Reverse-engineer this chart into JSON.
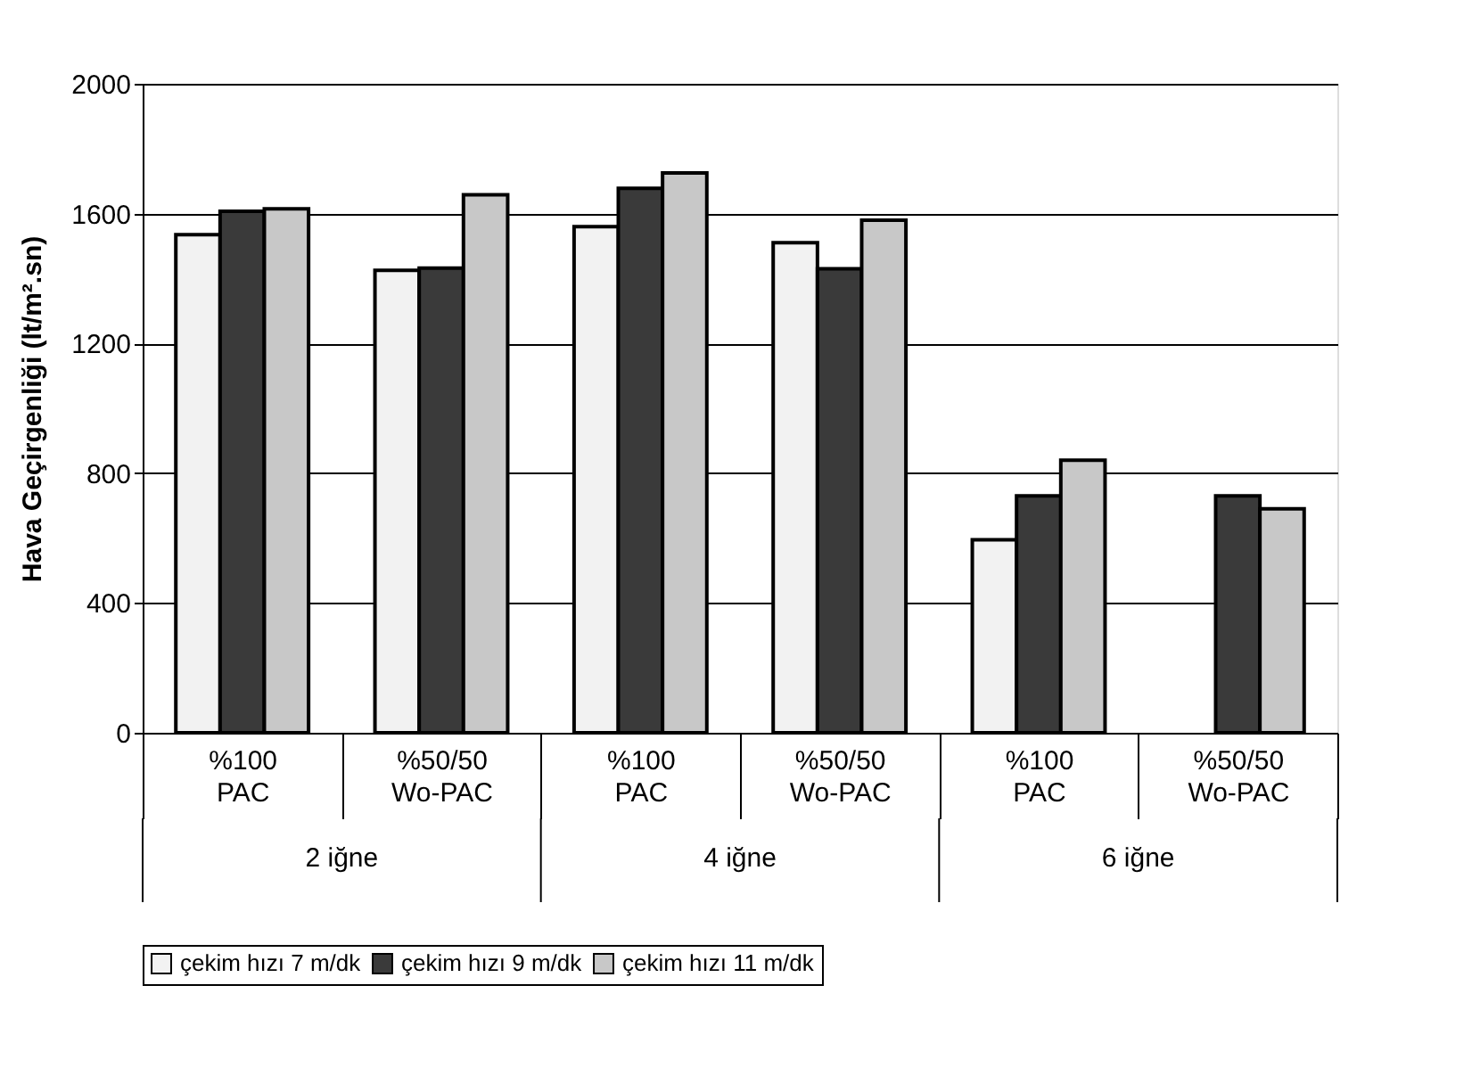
{
  "chart_data": {
    "type": "bar",
    "ylabel": "Hava Geçirgenliği (lt/m².sn)",
    "categories": [
      "%100 PAC",
      "%50/50 Wo-PAC",
      "%100 PAC",
      "%50/50 Wo-PAC",
      "%100 PAC",
      "%50/50 Wo-PAC"
    ],
    "annotations": [
      "2 iğne",
      "4 iğne",
      "6 iğne"
    ],
    "series": [
      {
        "name": "çekim hızı 7 m/dk",
        "color": "#f2f2f2",
        "values": [
          1535,
          1425,
          1560,
          1510,
          595,
          null
        ]
      },
      {
        "name": "çekim hızı 9 m/dk",
        "color": "#3a3a3a",
        "values": [
          1607,
          1432,
          1678,
          1430,
          730,
          730
        ]
      },
      {
        "name": "çekim hızı 11 m/dk",
        "color": "#c8c8c8",
        "values": [
          1615,
          1658,
          1725,
          1580,
          840,
          690
        ]
      }
    ],
    "ylim": [
      0,
      2000
    ],
    "yticks": [
      0,
      400,
      800,
      1200,
      1600,
      2000
    ],
    "grid": "y",
    "legend": "bottom"
  }
}
